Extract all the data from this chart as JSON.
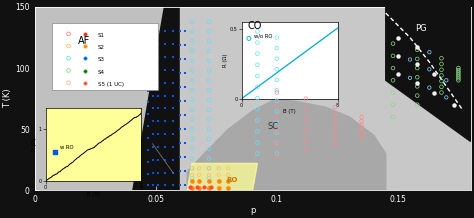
{
  "title": "",
  "xlabel": "p",
  "ylabel": "T (K)",
  "xlim": [
    0,
    0.18
  ],
  "ylim": [
    0,
    150
  ],
  "yticks": [
    0,
    50,
    100,
    150
  ],
  "xticks": [
    0,
    0.05,
    0.1,
    0.15
  ],
  "xticklabels": [
    "0",
    "0.05",
    "0.1",
    "0.15"
  ],
  "yticklabels": [
    "0",
    "50",
    "100",
    "150"
  ],
  "af_color": "#c0c0c0",
  "co_color": "#c8c8c8",
  "sc_color": "#a8a8a8",
  "ro_color": "#FFFF99",
  "s1_open": "#FF8888",
  "s1_fill": "#FF2222",
  "s2_open": "#FFBB66",
  "s2_fill": "#FF8800",
  "s3_open": "#66DDFF",
  "s3_fill": "#0055EE",
  "s4_open": "#88DD88",
  "s4_fill": "#007700",
  "s5_open": "#FFBB88",
  "s5_fill": "#FF4444"
}
